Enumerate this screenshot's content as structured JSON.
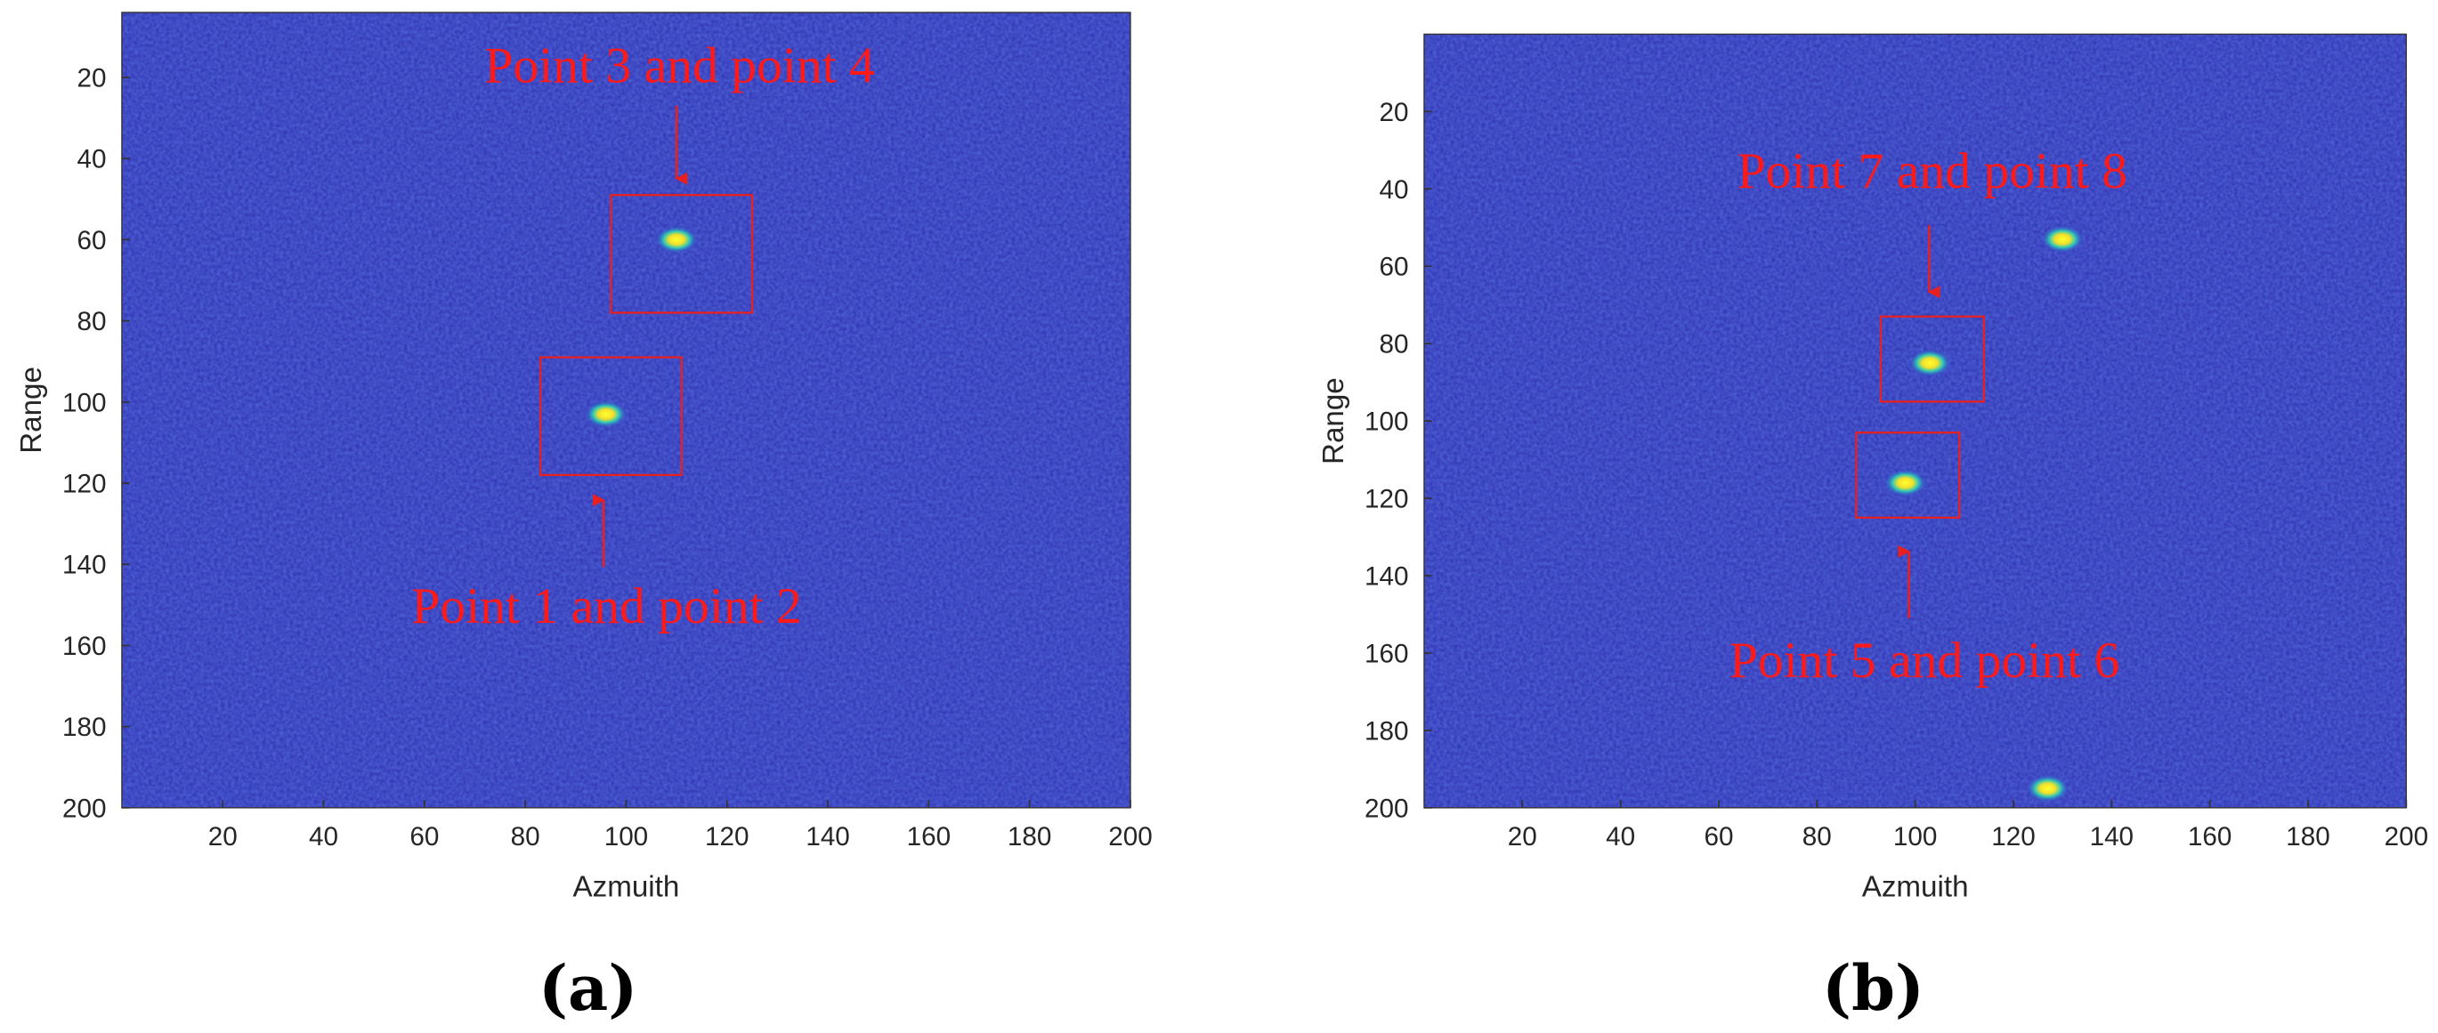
{
  "chart_data": [
    {
      "type": "image",
      "caption": "(a)",
      "xlabel": "Azmuith",
      "ylabel": "Range",
      "xlim": [
        0,
        200
      ],
      "ylim": [
        4,
        200
      ],
      "y_reversed": true,
      "xticks": [
        20,
        40,
        60,
        80,
        100,
        120,
        140,
        160,
        180,
        200
      ],
      "yticks": [
        20,
        40,
        60,
        80,
        100,
        120,
        140,
        160,
        180,
        200
      ],
      "targets": {
        "x": [
          110,
          96
        ],
        "y": [
          60,
          103
        ]
      },
      "annotations": [
        {
          "text": "Point 3 and point 4",
          "box": {
            "x": [
              97,
              125
            ],
            "y": [
              49,
              78
            ]
          }
        },
        {
          "text": "Point 1 and point 2",
          "box": {
            "x": [
              83,
              111
            ],
            "y": [
              89,
              118
            ]
          }
        }
      ]
    },
    {
      "type": "image",
      "caption": "(b)",
      "xlabel": "Azmuith",
      "ylabel": "Range",
      "xlim": [
        0,
        200
      ],
      "ylim": [
        0,
        200
      ],
      "y_reversed": true,
      "xticks": [
        20,
        40,
        60,
        80,
        100,
        120,
        140,
        160,
        180,
        200
      ],
      "yticks": [
        20,
        40,
        60,
        80,
        100,
        120,
        140,
        160,
        180,
        200
      ],
      "targets": {
        "x": [
          103,
          98,
          130,
          127
        ],
        "y": [
          85,
          116,
          53,
          195
        ]
      },
      "annotations": [
        {
          "text": "Point 7 and point 8",
          "box": {
            "x": [
              93,
              114
            ],
            "y": [
              73,
              95
            ]
          }
        },
        {
          "text": "Point 5 and point 6",
          "box": {
            "x": [
              88,
              109
            ],
            "y": [
              103,
              125
            ]
          }
        }
      ]
    }
  ]
}
